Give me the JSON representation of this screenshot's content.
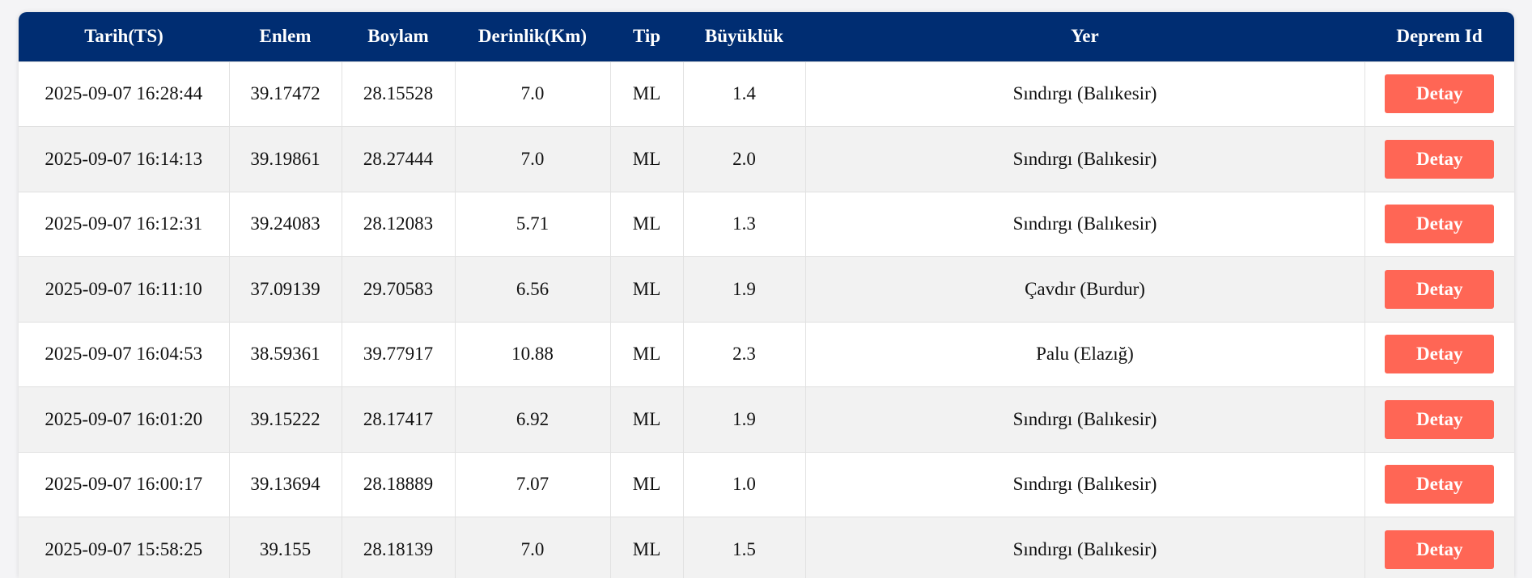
{
  "colors": {
    "header_bg": "#002d72",
    "button_bg": "#ff6655",
    "row_alt": "#f2f2f2"
  },
  "table": {
    "headers": [
      "Tarih(TS)",
      "Enlem",
      "Boylam",
      "Derinlik(Km)",
      "Tip",
      "Büyüklük",
      "Yer",
      "Deprem Id"
    ],
    "button_label": "Detay",
    "rows": [
      [
        "2025-09-07 16:28:44",
        "39.17472",
        "28.15528",
        "7.0",
        "ML",
        "1.4",
        "Sındırgı (Balıkesir)"
      ],
      [
        "2025-09-07 16:14:13",
        "39.19861",
        "28.27444",
        "7.0",
        "ML",
        "2.0",
        "Sındırgı (Balıkesir)"
      ],
      [
        "2025-09-07 16:12:31",
        "39.24083",
        "28.12083",
        "5.71",
        "ML",
        "1.3",
        "Sındırgı (Balıkesir)"
      ],
      [
        "2025-09-07 16:11:10",
        "37.09139",
        "29.70583",
        "6.56",
        "ML",
        "1.9",
        "Çavdır (Burdur)"
      ],
      [
        "2025-09-07 16:04:53",
        "38.59361",
        "39.77917",
        "10.88",
        "ML",
        "2.3",
        "Palu (Elazığ)"
      ],
      [
        "2025-09-07 16:01:20",
        "39.15222",
        "28.17417",
        "6.92",
        "ML",
        "1.9",
        "Sındırgı (Balıkesir)"
      ],
      [
        "2025-09-07 16:00:17",
        "39.13694",
        "28.18889",
        "7.07",
        "ML",
        "1.0",
        "Sındırgı (Balıkesir)"
      ],
      [
        "2025-09-07 15:58:25",
        "39.155",
        "28.18139",
        "7.0",
        "ML",
        "1.5",
        "Sındırgı (Balıkesir)"
      ]
    ]
  }
}
